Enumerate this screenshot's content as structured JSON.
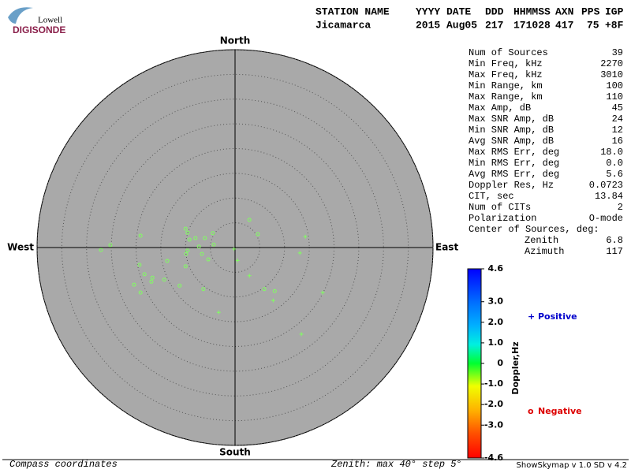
{
  "logo": {
    "top": "Lowell",
    "bottom": "DIGISONDE"
  },
  "header": {
    "columns": [
      "STATION NAME",
      "YYYY DATE",
      "DDD",
      "HHMMSS",
      "AXN",
      "PPS",
      "IGP"
    ],
    "values": [
      "Jicamarca",
      "2015 Aug05",
      "217",
      "171028",
      "417",
      "75",
      "+8F"
    ]
  },
  "stats": [
    [
      "Num of Sources",
      39
    ],
    [
      "Min Freq, kHz",
      2270
    ],
    [
      "Max Freq, kHz",
      3010
    ],
    [
      "Min Range, km",
      100
    ],
    [
      "Max Range, km",
      110
    ],
    [
      "Max Amp, dB",
      45
    ],
    [
      "Max SNR Amp, dB",
      24
    ],
    [
      "Min SNR Amp, dB",
      12
    ],
    [
      "Avg SNR Amp, dB",
      16
    ],
    [
      "Max RMS Err, deg",
      "18.0"
    ],
    [
      "Min RMS Err, deg",
      "0.0"
    ],
    [
      "Avg RMS Err, deg",
      5.6
    ],
    [
      "Doppler Res, Hz",
      0.0723
    ],
    [
      "CIT, sec",
      13.84
    ],
    [
      "Num of CITs",
      2
    ],
    [
      "Polarization",
      "O-mode"
    ]
  ],
  "center": {
    "title": "Center of Sources, deg:",
    "rows": [
      [
        "Zenith",
        6.8
      ],
      [
        "Azimuth",
        117
      ]
    ]
  },
  "footer": {
    "left": "Compass coordinates",
    "middle": "Zenith: max 40°  step 5°",
    "right": "ShowSkymap v 1.0  SD v 4.2"
  },
  "chart_data": {
    "type": "skymap",
    "directions": {
      "north": "North",
      "south": "South",
      "east": "East",
      "west": "West"
    },
    "xlim": [
      -40,
      40
    ],
    "ylim": [
      -40,
      40
    ],
    "rticks": [
      5,
      10,
      15,
      20,
      25,
      30,
      35,
      40
    ],
    "point_color": "#80ff60",
    "series": [
      {
        "name": "Positive",
        "color": "#0000cc",
        "marker": "+",
        "x": [
          14.2,
          13.1,
          -0.2,
          0.5,
          2.9,
          7.7,
          17.7,
          -3.3,
          13.4
        ],
        "y": [
          2.2,
          -1.1,
          -0.3,
          -2.6,
          -5.7,
          -10.7,
          -9.1,
          -13.1,
          -17.5
        ]
      },
      {
        "name": "Negative",
        "color": "#dd0000",
        "marker": "o",
        "x": [
          2.9,
          4.6,
          -4.5,
          -6.1,
          -8.0,
          -9.2,
          -10.0,
          -9.6,
          -19.1,
          -25.2,
          -27.1,
          -9.6,
          -7.3,
          -6.7,
          -5.4,
          -4.3,
          -13.7,
          -10.0,
          -19.3,
          -18.3,
          -16.7,
          -14.3,
          -16.9,
          -20.4,
          -19.1,
          -11.2,
          -6.4,
          5.9,
          8.0,
          -9.9
        ],
        "y": [
          5.6,
          2.7,
          2.9,
          1.9,
          1.9,
          1.6,
          3.8,
          3.0,
          2.4,
          0.5,
          -0.5,
          -0.6,
          0.2,
          -1.3,
          -2.4,
          0.6,
          -2.7,
          -3.8,
          -3.5,
          -5.4,
          -6.1,
          -6.5,
          -6.9,
          -7.5,
          -9.1,
          -7.7,
          -8.4,
          -8.4,
          -8.8,
          -1.3
        ]
      }
    ],
    "colorbar": {
      "label": "Doppler,Hz",
      "ylim": [
        -4.6,
        4.6
      ],
      "yticks": [
        4.6,
        {
          "value": 3,
          "label": "3.0"
        },
        {
          "value": 2,
          "label": "2.0"
        },
        {
          "value": 1,
          "label": "1.0"
        },
        0,
        {
          "value": -1,
          "label": "-1.0"
        },
        {
          "value": -2,
          "label": "-2.0"
        },
        {
          "value": -3,
          "label": "-3.0"
        },
        -4.6
      ]
    }
  }
}
